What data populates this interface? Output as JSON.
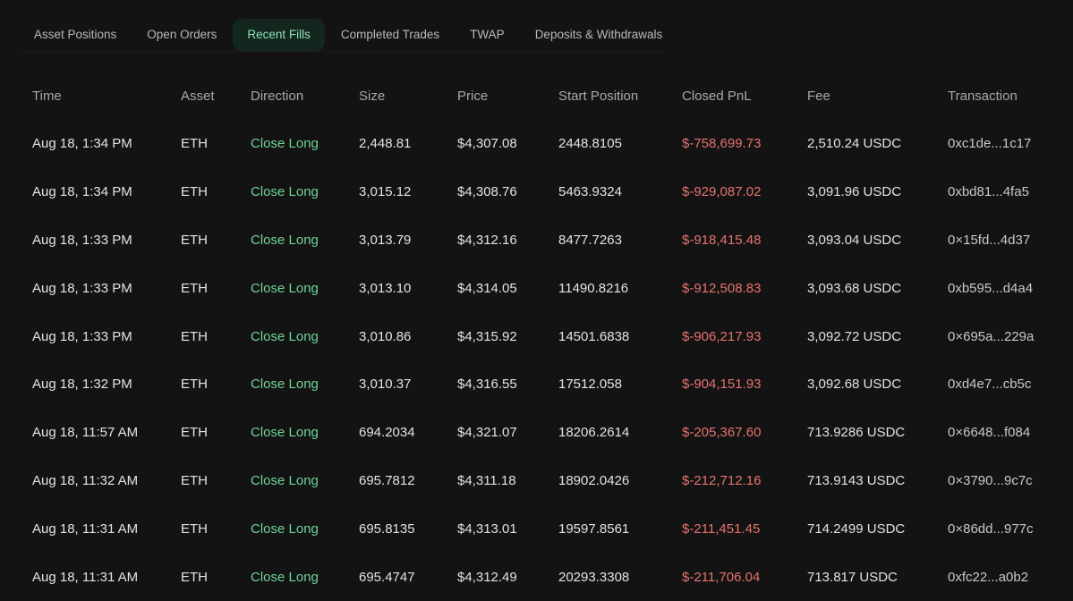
{
  "tabs": [
    {
      "label": "Asset Positions",
      "active": false
    },
    {
      "label": "Open Orders",
      "active": false
    },
    {
      "label": "Recent Fills",
      "active": true
    },
    {
      "label": "Completed Trades",
      "active": false
    },
    {
      "label": "TWAP",
      "active": false
    },
    {
      "label": "Deposits & Withdrawals",
      "active": false
    }
  ],
  "table": {
    "headers": [
      "Time",
      "Asset",
      "Direction",
      "Size",
      "Price",
      "Start Position",
      "Closed PnL",
      "Fee",
      "Transaction"
    ],
    "rows": [
      {
        "time": "Aug 18, 1:34 PM",
        "asset": "ETH",
        "direction": "Close Long",
        "size": "2,448.81",
        "price": "$4,307.08",
        "start": "2448.8105",
        "pnl": "$-758,699.73",
        "fee": "2,510.24 USDC",
        "tx": "0xc1de...1c17"
      },
      {
        "time": "Aug 18, 1:34 PM",
        "asset": "ETH",
        "direction": "Close Long",
        "size": "3,015.12",
        "price": "$4,308.76",
        "start": "5463.9324",
        "pnl": "$-929,087.02",
        "fee": "3,091.96 USDC",
        "tx": "0xbd81...4fa5"
      },
      {
        "time": "Aug 18, 1:33 PM",
        "asset": "ETH",
        "direction": "Close Long",
        "size": "3,013.79",
        "price": "$4,312.16",
        "start": "8477.7263",
        "pnl": "$-918,415.48",
        "fee": "3,093.04 USDC",
        "tx": "0×15fd...4d37"
      },
      {
        "time": "Aug 18, 1:33 PM",
        "asset": "ETH",
        "direction": "Close Long",
        "size": "3,013.10",
        "price": "$4,314.05",
        "start": "11490.8216",
        "pnl": "$-912,508.83",
        "fee": "3,093.68 USDC",
        "tx": "0xb595...d4a4"
      },
      {
        "time": "Aug 18, 1:33 PM",
        "asset": "ETH",
        "direction": "Close Long",
        "size": "3,010.86",
        "price": "$4,315.92",
        "start": "14501.6838",
        "pnl": "$-906,217.93",
        "fee": "3,092.72 USDC",
        "tx": "0×695a...229a"
      },
      {
        "time": "Aug 18, 1:32 PM",
        "asset": "ETH",
        "direction": "Close Long",
        "size": "3,010.37",
        "price": "$4,316.55",
        "start": "17512.058",
        "pnl": "$-904,151.93",
        "fee": "3,092.68 USDC",
        "tx": "0xd4e7...cb5c"
      },
      {
        "time": "Aug 18, 11:57 AM",
        "asset": "ETH",
        "direction": "Close Long",
        "size": "694.2034",
        "price": "$4,321.07",
        "start": "18206.2614",
        "pnl": "$-205,367.60",
        "fee": "713.9286 USDC",
        "tx": "0×6648...f084"
      },
      {
        "time": "Aug 18, 11:32 AM",
        "asset": "ETH",
        "direction": "Close Long",
        "size": "695.7812",
        "price": "$4,311.18",
        "start": "18902.0426",
        "pnl": "$-212,712.16",
        "fee": "713.9143 USDC",
        "tx": "0×3790...9c7c"
      },
      {
        "time": "Aug 18, 11:31 AM",
        "asset": "ETH",
        "direction": "Close Long",
        "size": "695.8135",
        "price": "$4,313.01",
        "start": "19597.8561",
        "pnl": "$-211,451.45",
        "fee": "714.2499 USDC",
        "tx": "0×86dd...977c"
      },
      {
        "time": "Aug 18, 11:31 AM",
        "asset": "ETH",
        "direction": "Close Long",
        "size": "695.4747",
        "price": "$4,312.49",
        "start": "20293.3308",
        "pnl": "$-211,706.04",
        "fee": "713.817 USDC",
        "tx": "0xfc22...a0b2"
      }
    ]
  }
}
